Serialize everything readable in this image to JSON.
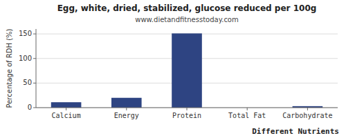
{
  "chart_data": {
    "type": "bar",
    "title": "Egg, white, dried, stabilized, glucose reduced per 100g",
    "subtitle": "www.dietandfitnesstoday.com",
    "xlabel": "Different Nutrients",
    "ylabel": "Percentage of RDH (%)",
    "categories": [
      "Calcium",
      "Energy",
      "Protein",
      "Total Fat",
      "Carbohydrate"
    ],
    "values": [
      11,
      20,
      151,
      0,
      3
    ],
    "color": "#2e4482",
    "ylim": [
      0,
      160
    ],
    "yticks": [
      0,
      50,
      100,
      150
    ],
    "grid": true
  }
}
